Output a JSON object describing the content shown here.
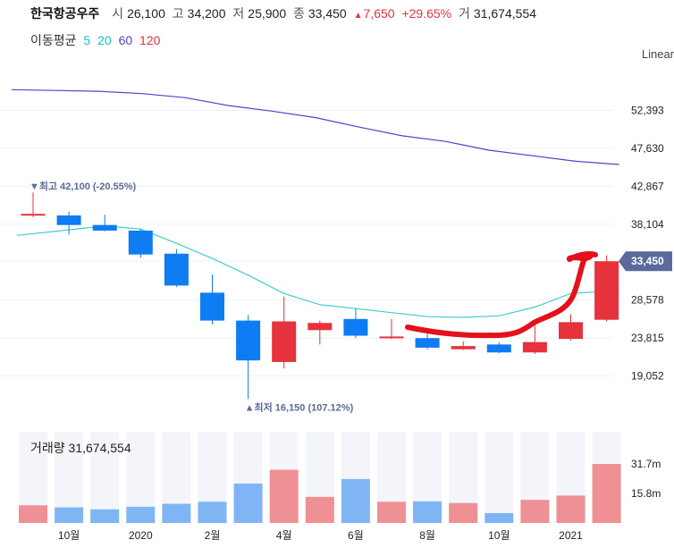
{
  "header": {
    "name": "한국항공우주",
    "open_label": "시",
    "open": "26,100",
    "high_label": "고",
    "high": "34,200",
    "low_label": "저",
    "low": "25,900",
    "close_label": "종",
    "close": "33,450",
    "change_arrow": "▲",
    "change": "7,650",
    "change_pct": "+29.65%",
    "volume_label": "거",
    "volume": "31,674,554"
  },
  "ma_legend": {
    "label": "이동평균",
    "items": [
      {
        "text": "5",
        "color": "#13c2c2"
      },
      {
        "text": "20",
        "color": "#13c2c2"
      },
      {
        "text": "60",
        "color": "#5b3fc4"
      },
      {
        "text": "120",
        "color": "#e5323c"
      }
    ]
  },
  "scale_label": "Linear",
  "colors": {
    "up": "#e5323c",
    "down": "#0e7cf2",
    "vol_up": "#ef9094",
    "vol_down": "#7fb5f5",
    "ma20": "#3ccfc9",
    "ma60": "#5b3fc4",
    "band": "#f3f5fa",
    "tag": "#5b6a9a"
  },
  "chart_data": {
    "type": "candlestick",
    "categories": [
      "2019-09",
      "2019-10",
      "2019-11",
      "2019-12",
      "2020-01",
      "2020-02",
      "2020-03",
      "2020-04",
      "2020-05",
      "2020-06",
      "2020-07",
      "2020-08",
      "2020-09",
      "2020-10",
      "2020-11",
      "2020-12",
      "2021-01"
    ],
    "ohlc": [
      {
        "o": 39200,
        "h": 42100,
        "l": 39000,
        "c": 39400
      },
      {
        "o": 39200,
        "h": 39700,
        "l": 36800,
        "c": 38000
      },
      {
        "o": 38000,
        "h": 39300,
        "l": 37200,
        "c": 37300
      },
      {
        "o": 37300,
        "h": 37500,
        "l": 33900,
        "c": 34300
      },
      {
        "o": 34400,
        "h": 35000,
        "l": 30200,
        "c": 30400
      },
      {
        "o": 29500,
        "h": 31800,
        "l": 25500,
        "c": 26000
      },
      {
        "o": 26000,
        "h": 26700,
        "l": 16150,
        "c": 21000
      },
      {
        "o": 20800,
        "h": 29000,
        "l": 20000,
        "c": 25900
      },
      {
        "o": 24800,
        "h": 26000,
        "l": 23000,
        "c": 25700
      },
      {
        "o": 26200,
        "h": 27500,
        "l": 23800,
        "c": 24100
      },
      {
        "o": 23900,
        "h": 26200,
        "l": 23700,
        "c": 24000
      },
      {
        "o": 23800,
        "h": 25000,
        "l": 22400,
        "c": 22600
      },
      {
        "o": 22400,
        "h": 23400,
        "l": 22300,
        "c": 22800
      },
      {
        "o": 23000,
        "h": 23300,
        "l": 21900,
        "c": 22000
      },
      {
        "o": 22000,
        "h": 25600,
        "l": 21800,
        "c": 23300
      },
      {
        "o": 23700,
        "h": 26800,
        "l": 23500,
        "c": 25800
      },
      {
        "o": 26100,
        "h": 34200,
        "l": 25900,
        "c": 33450
      }
    ],
    "ma20": [
      36700,
      37400,
      37900,
      37500,
      35700,
      33800,
      31700,
      29400,
      28000,
      27500,
      27000,
      26500,
      26400,
      26600,
      27700,
      29400,
      29800
    ],
    "ma60": [
      55000,
      54900,
      54800,
      54500,
      54000,
      53000,
      52300,
      51500,
      50300,
      49200,
      48500,
      47400,
      46700,
      46000,
      45600
    ],
    "ma20_x_last": 16.35,
    "ma60_x_start": -0.6,
    "ma60_x_end": 16.35,
    "volume": [
      9.5,
      8.4,
      7.3,
      8.7,
      10.3,
      11.4,
      21.2,
      28.6,
      14.0,
      23.6,
      11.4,
      11.6,
      10.7,
      5.3,
      12.4,
      14.7,
      31.7
    ],
    "y_ticks": [
      "52,393",
      "47,630",
      "42,867",
      "38,104",
      "33,450",
      "28,578",
      "23,815",
      "19,052"
    ],
    "y_tick_values": [
      52393,
      47630,
      42867,
      38104,
      33450,
      28578,
      23815,
      19052
    ],
    "last_price_label": "33,450",
    "last_price": 33450,
    "volume_ticks": [
      "31.7m",
      "15.8m"
    ],
    "volume_tick_values": [
      31.7,
      15.8
    ],
    "x_labels": [
      {
        "text": "10월",
        "index": 1
      },
      {
        "text": "2020",
        "index": 3
      },
      {
        "text": "2월",
        "index": 5
      },
      {
        "text": "4월",
        "index": 7
      },
      {
        "text": "6월",
        "index": 9
      },
      {
        "text": "8월",
        "index": 11
      },
      {
        "text": "10월",
        "index": 13
      },
      {
        "text": "2021",
        "index": 15
      }
    ],
    "high_annotation": {
      "text": "▼최고 42,100 (-20.55%)",
      "index": 0,
      "value": 42100
    },
    "low_annotation": {
      "text": "▲최저 16,150 (107.12%)",
      "index": 6,
      "value": 16150
    }
  },
  "volume_panel": {
    "label": "거래량",
    "value": "31,674,554"
  }
}
